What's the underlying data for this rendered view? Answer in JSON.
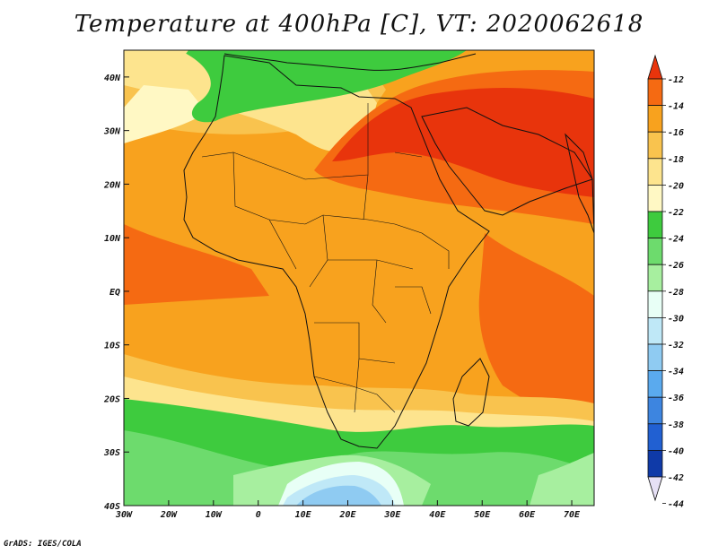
{
  "title": "Temperature at 400hPa [C], VT: 2020062618",
  "credit": "GrADS: IGES/COLA",
  "map": {
    "lon_ticks": [
      "30W",
      "20W",
      "10W",
      "0",
      "10E",
      "20E",
      "30E",
      "40E",
      "50E",
      "60E",
      "70E"
    ],
    "lat_ticks": [
      "40N",
      "30N",
      "20N",
      "10N",
      "EQ",
      "10S",
      "20S",
      "30S",
      "40S"
    ],
    "lon_range": [
      -30,
      75
    ],
    "lat_range": [
      -40,
      45
    ]
  },
  "legend": {
    "labels": [
      "-12",
      "-14",
      "-16",
      "-18",
      "-20",
      "-22",
      "-24",
      "-26",
      "-28",
      "-30",
      "-32",
      "-34",
      "-36",
      "-38",
      "-40",
      "-42",
      "-44"
    ],
    "colors": [
      "#e8340c",
      "#f56a12",
      "#f8a21e",
      "#f9c34e",
      "#fde48e",
      "#fff8c4",
      "#3ecb3e",
      "#6ddb6d",
      "#a7ef9f",
      "#e8fff6",
      "#bfe8f7",
      "#8fcbf2",
      "#5aaaee",
      "#3d85e0",
      "#2160d2",
      "#0f3aa8",
      "#0a1a6e"
    ]
  }
}
